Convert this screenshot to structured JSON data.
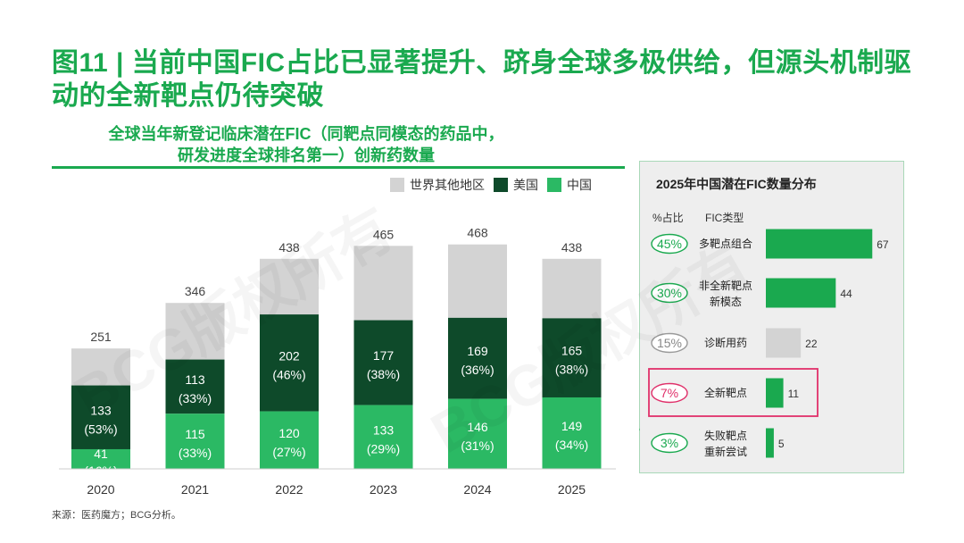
{
  "title": "图11 | 当前中国FIC占比已显著提升、跻身全球多极供给，但源头机制驱动的全新靶点仍待突破",
  "subtitle_line1": "全球当年新登记临床潜在FIC（同靶点同模态的药品中，",
  "subtitle_line2": "研发进度全球排名第一）创新药数量",
  "source": "来源：医药魔方；BCG分析。",
  "watermark": "BCG版权所有",
  "colors": {
    "green": "#1aa94f",
    "dark_green": "#0e4a2a",
    "mid_green": "#2bb964",
    "grey": "#d3d3d3",
    "highlight": "#e0306a"
  },
  "chart_data": [
    {
      "type": "bar",
      "stacked": true,
      "categories": [
        "2020",
        "2021",
        "2022",
        "2023",
        "2024",
        "2025"
      ],
      "totals": [
        251,
        346,
        438,
        465,
        468,
        438
      ],
      "series": [
        {
          "name": "中国",
          "values": [
            41,
            115,
            120,
            133,
            146,
            149
          ],
          "pct_labels": [
            "(16%)",
            "(33%)",
            "(27%)",
            "(29%)",
            "(31%)",
            "(34%)"
          ],
          "color": "#2bb964"
        },
        {
          "name": "美国",
          "values": [
            133,
            113,
            202,
            177,
            169,
            165
          ],
          "pct_labels": [
            "(53%)",
            "(33%)",
            "(46%)",
            "(38%)",
            "(36%)",
            "(38%)"
          ],
          "color": "#0e4a2a"
        },
        {
          "name": "世界其他地区",
          "values": [
            77,
            118,
            116,
            155,
            153,
            124
          ],
          "color": "#d3d3d3"
        }
      ],
      "legend": [
        "世界其他地区",
        "美国",
        "中国"
      ],
      "legend_position": "top-right",
      "ylim": [
        0,
        500
      ],
      "grid": false
    },
    {
      "type": "bar",
      "orientation": "horizontal",
      "title": "2025年中国潜在FIC数量分布",
      "col_headers": [
        "%占比",
        "FIC类型"
      ],
      "categories": [
        "多靶点组合",
        "非全新靶点\n新模态",
        "诊断用药",
        "全新靶点",
        "失败靶点\n重新尝试"
      ],
      "values": [
        67,
        44,
        22,
        11,
        5
      ],
      "percent": [
        "45%",
        "30%",
        "15%",
        "7%",
        "3%"
      ],
      "highlight_index": 3,
      "grid": false
    }
  ]
}
